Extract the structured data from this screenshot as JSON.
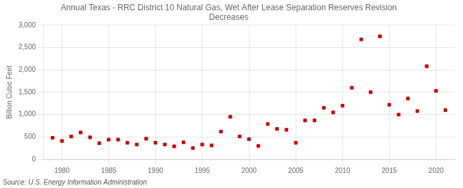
{
  "chart_data": {
    "type": "scatter",
    "title": "Annual Texas - RRC District 10 Natural Gas, Wet After Lease Separation Reserves Revision\nDecreases",
    "ylabel": "Billion Cubic Feet",
    "annotations": [
      "Source: U.S. Energy Information Administration"
    ],
    "x": [
      1979,
      1980,
      1981,
      1982,
      1983,
      1984,
      1985,
      1986,
      1987,
      1988,
      1989,
      1990,
      1991,
      1992,
      1993,
      1994,
      1995,
      1996,
      1997,
      1998,
      1999,
      2000,
      2001,
      2002,
      2003,
      2004,
      2005,
      2006,
      2007,
      2008,
      2009,
      2010,
      2011,
      2012,
      2013,
      2014,
      2015,
      2016,
      2017,
      2018,
      2019,
      2020,
      2021
    ],
    "values": [
      480,
      410,
      510,
      600,
      490,
      360,
      440,
      440,
      370,
      330,
      460,
      370,
      330,
      290,
      380,
      250,
      330,
      310,
      620,
      950,
      510,
      450,
      300,
      790,
      680,
      660,
      370,
      870,
      870,
      1150,
      1050,
      1200,
      1600,
      2680,
      1500,
      2750,
      1220,
      1000,
      1360,
      1080,
      2080,
      1530,
      1100
    ],
    "color": "#cc0000",
    "marker": "square",
    "xlim": [
      1978,
      2022
    ],
    "xticks": [
      1980,
      1985,
      1990,
      1995,
      2000,
      2005,
      2010,
      2015,
      2020
    ],
    "ylim": [
      0,
      3000
    ],
    "yticks": [
      0,
      500,
      {
        "value": 1000,
        "label": "1,000"
      },
      {
        "value": 1500,
        "label": "1,500"
      },
      {
        "value": 2000,
        "label": "2,000"
      },
      {
        "value": 2500,
        "label": "2,500"
      },
      {
        "value": 3000,
        "label": "3,000"
      }
    ],
    "grid": true
  }
}
